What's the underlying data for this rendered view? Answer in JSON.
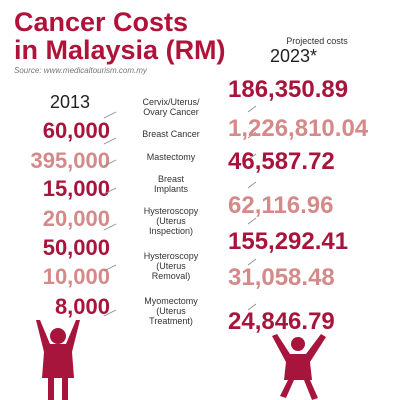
{
  "title": {
    "line1": "Cancer Costs",
    "line2": "in Malaysia (RM)"
  },
  "source": "Source: www.medicaltourism.com.my",
  "left_header": "2013",
  "right_header": {
    "label": "Projected costs",
    "year": "2023*"
  },
  "colors": {
    "dark": "#a8153c",
    "light": "#d38a88",
    "title": "#b0123a"
  },
  "rows": [
    {
      "cost_2013": "60,000",
      "procedure": [
        "Cervix/Uterus/",
        "Ovary Cancer"
      ],
      "cost_2023": "186,350.89",
      "left_tone": "dark",
      "right_tone": "dark"
    },
    {
      "cost_2013": "395,000",
      "procedure": [
        "Breast Cancer"
      ],
      "cost_2023": "1,226,810.04",
      "left_tone": "light",
      "right_tone": "light"
    },
    {
      "cost_2013": "15,000",
      "procedure": [
        "Mastectomy"
      ],
      "cost_2023": "46,587.72",
      "left_tone": "dark",
      "right_tone": "dark"
    },
    {
      "cost_2013": "20,000",
      "procedure": [
        "Breast",
        "Implants"
      ],
      "cost_2023": "62,116.96",
      "left_tone": "light",
      "right_tone": "light"
    },
    {
      "cost_2013": "50,000",
      "procedure": [
        "Hysteroscopy",
        "(Uterus",
        "Inspection)"
      ],
      "cost_2023": "155,292.41",
      "left_tone": "dark",
      "right_tone": "dark"
    },
    {
      "cost_2013": "10,000",
      "procedure": [
        "Hysteroscopy",
        "(Uterus",
        "Removal)"
      ],
      "cost_2023": "31,058.48",
      "left_tone": "light",
      "right_tone": "light"
    },
    {
      "cost_2013": "8,000",
      "procedure": [
        "Myomectomy",
        "(Uterus",
        "Treatment)"
      ],
      "cost_2023": "24,846.79",
      "left_tone": "dark",
      "right_tone": "dark"
    }
  ]
}
